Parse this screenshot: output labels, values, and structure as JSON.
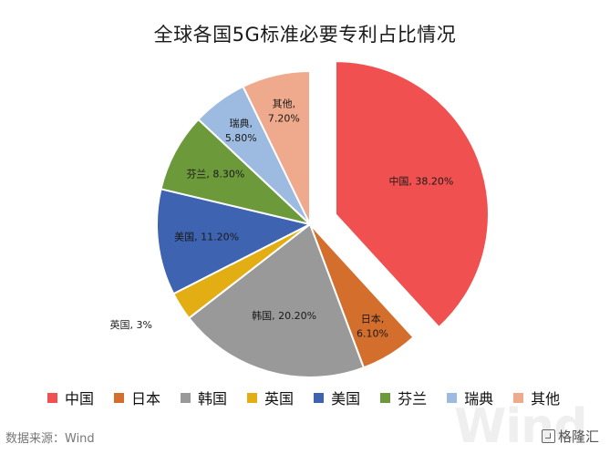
{
  "chart_data": {
    "type": "pie",
    "title": "全球各国5G标准必要专利占比情况",
    "categories": [
      "中国",
      "日本",
      "韩国",
      "英国",
      "美国",
      "芬兰",
      "瑞典",
      "其他"
    ],
    "values": [
      38.2,
      6.1,
      20.2,
      3.0,
      11.2,
      8.3,
      5.8,
      7.2
    ],
    "data_labels": [
      "中国, 38.20%",
      "日本,\n6.10%",
      "韩国, 20.20%",
      "英国, 3%",
      "美国, 11.20%",
      "芬兰, 8.30%",
      "瑞典,\n5.80%",
      "其他,\n7.20%"
    ],
    "colors": [
      "#F05050",
      "#D46E2C",
      "#999999",
      "#E3AE14",
      "#3E63B0",
      "#6C9A3B",
      "#9DBBE0",
      "#EFA98C"
    ],
    "exploded": "中国",
    "legend_position": "bottom"
  },
  "source_text": "数据来源：Wind",
  "watermark_text": "Wind",
  "brand_text": "格隆汇"
}
